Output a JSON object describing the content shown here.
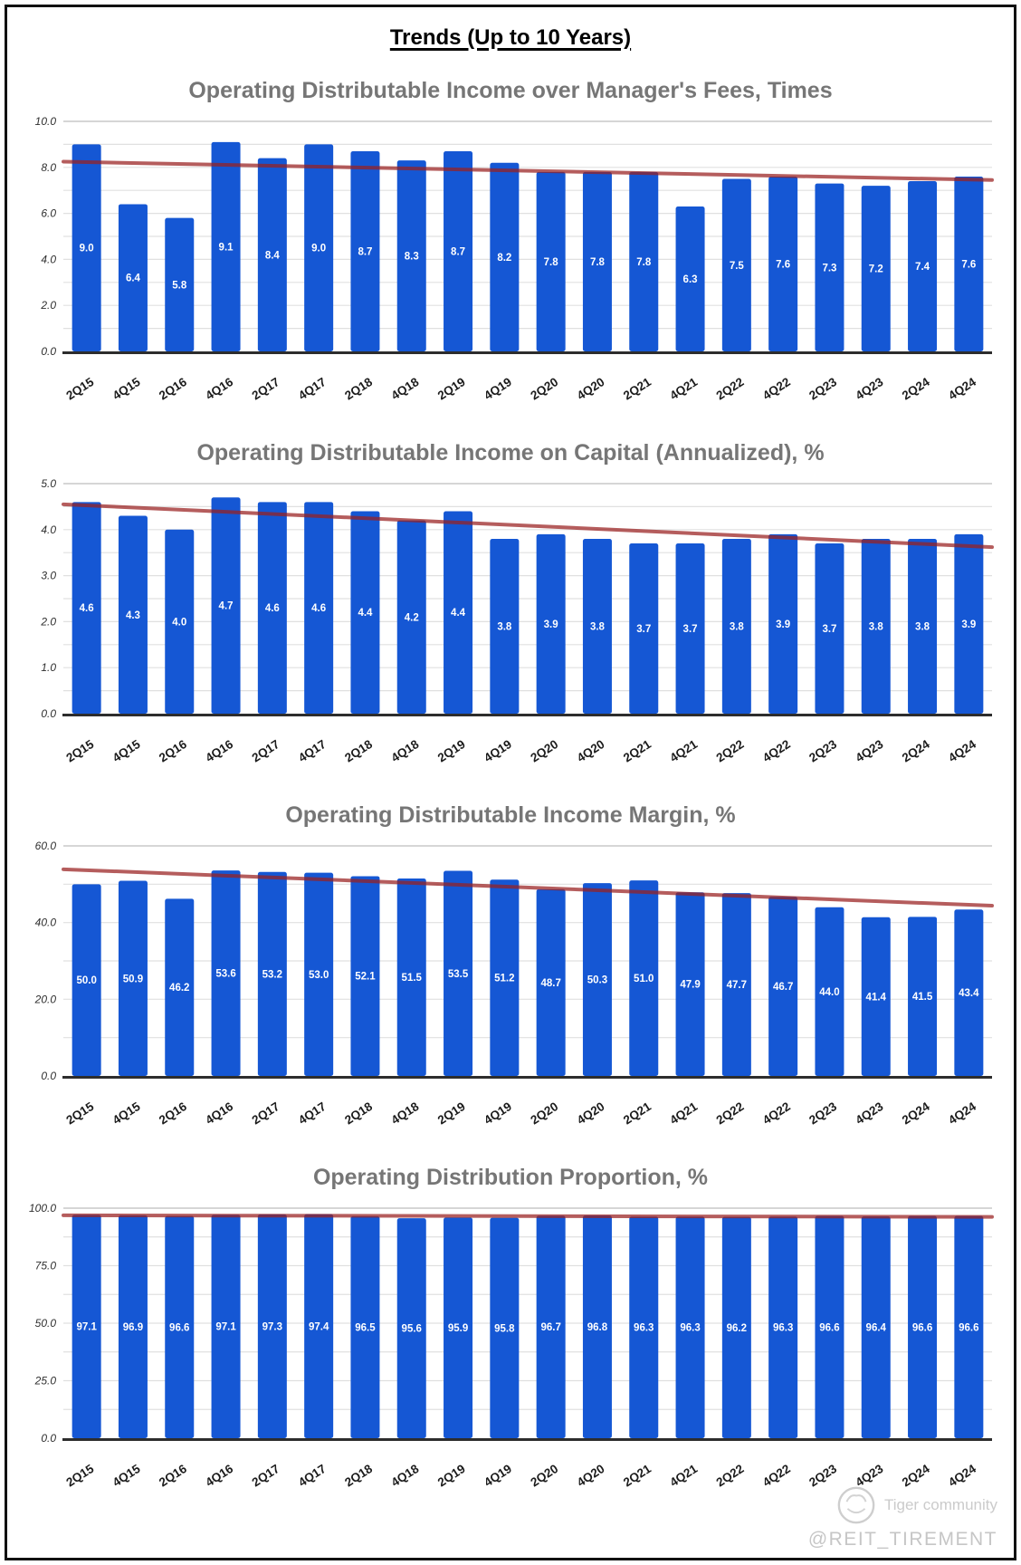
{
  "page": {
    "main_title": "Trends (Up to 10 Years)"
  },
  "watermark": {
    "brand": "Tiger community",
    "handle": "@REIT_TIREMENT"
  },
  "colors": {
    "bar": "#1557d4",
    "trend": "#992020",
    "chart_title": "#767676",
    "grid_minor": "#e0e0e0",
    "grid_top": "#bdbdbd",
    "axis_line": "#2d2d2d"
  },
  "chart_data": [
    {
      "type": "bar",
      "title": "Operating Distributable Income over Manager's Fees, Times",
      "categories": [
        "2Q15",
        "4Q15",
        "2Q16",
        "4Q16",
        "2Q17",
        "4Q17",
        "2Q18",
        "4Q18",
        "2Q19",
        "4Q19",
        "2Q20",
        "4Q20",
        "2Q21",
        "4Q21",
        "2Q22",
        "4Q22",
        "2Q23",
        "4Q23",
        "2Q24",
        "4Q24"
      ],
      "values": [
        9.0,
        6.4,
        5.8,
        9.1,
        8.4,
        9.0,
        8.7,
        8.3,
        8.7,
        8.2,
        7.8,
        7.8,
        7.8,
        6.3,
        7.5,
        7.6,
        7.3,
        7.2,
        7.4,
        7.6
      ],
      "xlabel": "",
      "ylabel": "",
      "ylim": [
        0,
        10
      ],
      "ytick_step": 2,
      "minor_step": 1,
      "value_decimals": 1,
      "grid": true,
      "legend": "none",
      "trendline": {
        "start": 8.25,
        "end": 7.45
      }
    },
    {
      "type": "bar",
      "title": "Operating Distributable Income on Capital (Annualized), %",
      "categories": [
        "2Q15",
        "4Q15",
        "2Q16",
        "4Q16",
        "2Q17",
        "4Q17",
        "2Q18",
        "4Q18",
        "2Q19",
        "4Q19",
        "2Q20",
        "4Q20",
        "2Q21",
        "4Q21",
        "2Q22",
        "4Q22",
        "2Q23",
        "4Q23",
        "2Q24",
        "4Q24"
      ],
      "values": [
        4.6,
        4.3,
        4.0,
        4.7,
        4.6,
        4.6,
        4.4,
        4.2,
        4.4,
        3.8,
        3.9,
        3.8,
        3.7,
        3.7,
        3.8,
        3.9,
        3.7,
        3.8,
        3.8,
        3.9
      ],
      "xlabel": "",
      "ylabel": "",
      "ylim": [
        0,
        5
      ],
      "ytick_step": 1,
      "minor_step": 0.5,
      "value_decimals": 1,
      "grid": true,
      "legend": "none",
      "trendline": {
        "start": 4.55,
        "end": 3.62
      }
    },
    {
      "type": "bar",
      "title": "Operating Distributable Income Margin, %",
      "categories": [
        "2Q15",
        "4Q15",
        "2Q16",
        "4Q16",
        "2Q17",
        "4Q17",
        "2Q18",
        "4Q18",
        "2Q19",
        "4Q19",
        "2Q20",
        "4Q20",
        "2Q21",
        "4Q21",
        "2Q22",
        "4Q22",
        "2Q23",
        "4Q23",
        "2Q24",
        "4Q24"
      ],
      "values": [
        50.0,
        50.9,
        46.2,
        53.6,
        53.2,
        53.0,
        52.1,
        51.5,
        53.5,
        51.2,
        48.7,
        50.3,
        51.0,
        47.9,
        47.7,
        46.7,
        44.0,
        41.4,
        41.5,
        43.4
      ],
      "xlabel": "",
      "ylabel": "",
      "ylim": [
        0,
        60
      ],
      "ytick_step": 20,
      "minor_step": 10,
      "value_decimals": 1,
      "grid": true,
      "legend": "none",
      "trendline": {
        "start": 53.9,
        "end": 44.4
      }
    },
    {
      "type": "bar",
      "title": "Operating Distribution Proportion, %",
      "categories": [
        "2Q15",
        "4Q15",
        "2Q16",
        "4Q16",
        "2Q17",
        "4Q17",
        "2Q18",
        "4Q18",
        "2Q19",
        "4Q19",
        "2Q20",
        "4Q20",
        "2Q21",
        "4Q21",
        "2Q22",
        "4Q22",
        "2Q23",
        "4Q23",
        "2Q24",
        "4Q24"
      ],
      "values": [
        97.1,
        96.9,
        96.6,
        97.1,
        97.3,
        97.4,
        96.5,
        95.6,
        95.9,
        95.8,
        96.7,
        96.8,
        96.3,
        96.3,
        96.2,
        96.3,
        96.6,
        96.4,
        96.6,
        96.6
      ],
      "xlabel": "",
      "ylabel": "",
      "ylim": [
        0,
        100
      ],
      "ytick_step": 25,
      "minor_step": 12.5,
      "value_decimals": 1,
      "grid": true,
      "legend": "none",
      "trendline": {
        "start": 96.9,
        "end": 96.2
      }
    }
  ]
}
